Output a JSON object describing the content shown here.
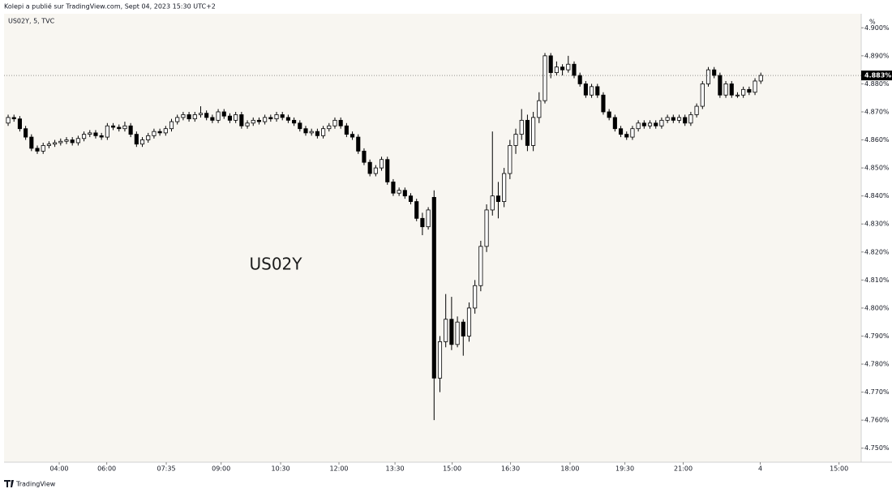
{
  "header": {
    "publisher": "Kolepi a publié sur TradingView.com, Sept 04, 2023 15:30 UTC+2",
    "footer": "TradingView"
  },
  "chart_data": {
    "type": "candlestick",
    "symbol": "US02Y, 5, TVC",
    "watermark": "US02Y",
    "unit": "%",
    "up_color": "#ffffff",
    "down_color": "#000000",
    "border_color": "#000000",
    "grid": false,
    "ylim": [
      4.745,
      4.905
    ],
    "yticks": [
      {
        "value": 4.75,
        "label": "4.750%"
      },
      {
        "value": 4.76,
        "label": "4.760%"
      },
      {
        "value": 4.77,
        "label": "4.770%"
      },
      {
        "value": 4.78,
        "label": "4.780%"
      },
      {
        "value": 4.79,
        "label": "4.790%"
      },
      {
        "value": 4.8,
        "label": "4.800%"
      },
      {
        "value": 4.81,
        "label": "4.810%"
      },
      {
        "value": 4.82,
        "label": "4.820%"
      },
      {
        "value": 4.83,
        "label": "4.830%"
      },
      {
        "value": 4.84,
        "label": "4.840%"
      },
      {
        "value": 4.85,
        "label": "4.850%"
      },
      {
        "value": 4.86,
        "label": "4.860%"
      },
      {
        "value": 4.87,
        "label": "4.870%"
      },
      {
        "value": 4.88,
        "label": "4.880%"
      },
      {
        "value": 4.89,
        "label": "4.890%"
      },
      {
        "value": 4.9,
        "label": "4.900%"
      }
    ],
    "xlim": [
      -0.7,
      146.2
    ],
    "xticks": [
      {
        "value": 8.75,
        "label": "04:00"
      },
      {
        "value": 16.9,
        "label": "06:00"
      },
      {
        "value": 27.1,
        "label": "07:35"
      },
      {
        "value": 36.5,
        "label": "09:00"
      },
      {
        "value": 46.7,
        "label": "10:30"
      },
      {
        "value": 56.7,
        "label": "12:00"
      },
      {
        "value": 66.3,
        "label": "13:30"
      },
      {
        "value": 76.1,
        "label": "15:00"
      },
      {
        "value": 86.1,
        "label": "16:30"
      },
      {
        "value": 96.3,
        "label": "18:00"
      },
      {
        "value": 105.7,
        "label": "19:30"
      },
      {
        "value": 115.7,
        "label": "21:00"
      },
      {
        "value": 128.9,
        "label": "4"
      },
      {
        "value": 142.4,
        "label": "15:00"
      }
    ],
    "last_price": {
      "value": 4.883,
      "label": "4.883%"
    },
    "ohlc": [
      [
        4.866,
        4.869,
        4.865,
        4.868
      ],
      [
        4.868,
        4.869,
        4.8665,
        4.8675
      ],
      [
        4.8675,
        4.8685,
        4.863,
        4.864
      ],
      [
        4.864,
        4.865,
        4.86,
        4.861
      ],
      [
        4.861,
        4.862,
        4.856,
        4.857
      ],
      [
        4.857,
        4.858,
        4.855,
        4.856
      ],
      [
        4.856,
        4.859,
        4.855,
        4.858
      ],
      [
        4.858,
        4.8595,
        4.857,
        4.8585
      ],
      [
        4.8585,
        4.86,
        4.8575,
        4.859
      ],
      [
        4.859,
        4.8605,
        4.858,
        4.8595
      ],
      [
        4.8595,
        4.861,
        4.8585,
        4.86
      ],
      [
        4.86,
        4.861,
        4.858,
        4.859
      ],
      [
        4.859,
        4.8615,
        4.858,
        4.8605
      ],
      [
        4.8605,
        4.863,
        4.8595,
        4.862
      ],
      [
        4.862,
        4.8635,
        4.861,
        4.8625
      ],
      [
        4.8625,
        4.8635,
        4.8605,
        4.8615
      ],
      [
        4.8615,
        4.8625,
        4.86,
        4.861
      ],
      [
        4.861,
        4.866,
        4.86,
        4.865
      ],
      [
        4.865,
        4.866,
        4.8635,
        4.8645
      ],
      [
        4.8645,
        4.8655,
        4.863,
        4.864
      ],
      [
        4.864,
        4.8665,
        4.863,
        4.865
      ],
      [
        4.865,
        4.866,
        4.861,
        4.862
      ],
      [
        4.862,
        4.863,
        4.8575,
        4.8585
      ],
      [
        4.8585,
        4.861,
        4.8575,
        4.86
      ],
      [
        4.86,
        4.8625,
        4.859,
        4.8615
      ],
      [
        4.8615,
        4.864,
        4.8605,
        4.863
      ],
      [
        4.863,
        4.864,
        4.8615,
        4.8625
      ],
      [
        4.8625,
        4.865,
        4.8615,
        4.864
      ],
      [
        4.864,
        4.8675,
        4.863,
        4.8665
      ],
      [
        4.8665,
        4.869,
        4.8655,
        4.868
      ],
      [
        4.868,
        4.87,
        4.867,
        4.869
      ],
      [
        4.869,
        4.87,
        4.8665,
        4.8675
      ],
      [
        4.8675,
        4.87,
        4.8665,
        4.869
      ],
      [
        4.869,
        4.872,
        4.868,
        4.8695
      ],
      [
        4.8695,
        4.8705,
        4.867,
        4.868
      ],
      [
        4.868,
        4.869,
        4.866,
        4.867
      ],
      [
        4.867,
        4.871,
        4.866,
        4.87
      ],
      [
        4.87,
        4.871,
        4.8675,
        4.8685
      ],
      [
        4.8685,
        4.8695,
        4.866,
        4.867
      ],
      [
        4.867,
        4.87,
        4.866,
        4.869
      ],
      [
        4.869,
        4.87,
        4.864,
        4.865
      ],
      [
        4.865,
        4.867,
        4.864,
        4.866
      ],
      [
        4.866,
        4.868,
        4.865,
        4.867
      ],
      [
        4.867,
        4.868,
        4.8655,
        4.8665
      ],
      [
        4.8665,
        4.869,
        4.8655,
        4.868
      ],
      [
        4.868,
        4.869,
        4.8665,
        4.8675
      ],
      [
        4.8675,
        4.87,
        4.8665,
        4.869
      ],
      [
        4.869,
        4.87,
        4.867,
        4.868
      ],
      [
        4.868,
        4.869,
        4.866,
        4.867
      ],
      [
        4.867,
        4.868,
        4.865,
        4.866
      ],
      [
        4.866,
        4.867,
        4.863,
        4.864
      ],
      [
        4.864,
        4.865,
        4.8615,
        4.8625
      ],
      [
        4.8625,
        4.864,
        4.8615,
        4.863
      ],
      [
        4.863,
        4.864,
        4.8605,
        4.8615
      ],
      [
        4.8615,
        4.865,
        4.8605,
        4.864
      ],
      [
        4.864,
        4.866,
        4.863,
        4.865
      ],
      [
        4.865,
        4.868,
        4.864,
        4.867
      ],
      [
        4.867,
        4.868,
        4.864,
        4.865
      ],
      [
        4.865,
        4.866,
        4.861,
        4.862
      ],
      [
        4.862,
        4.863,
        4.86,
        4.861
      ],
      [
        4.861,
        4.862,
        4.855,
        4.856
      ],
      [
        4.856,
        4.857,
        4.851,
        4.852
      ],
      [
        4.852,
        4.853,
        4.847,
        4.848
      ],
      [
        4.848,
        4.851,
        4.847,
        4.85
      ],
      [
        4.85,
        4.854,
        4.849,
        4.853
      ],
      [
        4.853,
        4.854,
        4.844,
        4.845
      ],
      [
        4.845,
        4.846,
        4.84,
        4.841
      ],
      [
        4.841,
        4.843,
        4.84,
        4.842
      ],
      [
        4.842,
        4.843,
        4.839,
        4.84
      ],
      [
        4.84,
        4.841,
        4.837,
        4.838
      ],
      [
        4.838,
        4.839,
        4.831,
        4.832
      ],
      [
        4.832,
        4.834,
        4.826,
        4.829
      ],
      [
        4.829,
        4.836,
        4.828,
        4.835
      ],
      [
        4.8395,
        4.842,
        4.76,
        4.775
      ],
      [
        4.775,
        4.79,
        4.77,
        4.788
      ],
      [
        4.788,
        4.805,
        4.786,
        4.796
      ],
      [
        4.796,
        4.804,
        4.785,
        4.787
      ],
      [
        4.787,
        4.797,
        4.786,
        4.795
      ],
      [
        4.795,
        4.796,
        4.783,
        4.79
      ],
      [
        4.79,
        4.802,
        4.788,
        4.8
      ],
      [
        4.8,
        4.81,
        4.798,
        4.808
      ],
      [
        4.808,
        4.824,
        4.806,
        4.822
      ],
      [
        4.822,
        4.837,
        4.82,
        4.835
      ],
      [
        4.835,
        4.863,
        4.833,
        4.84
      ],
      [
        4.84,
        4.845,
        4.832,
        4.838
      ],
      [
        4.838,
        4.85,
        4.836,
        4.848
      ],
      [
        4.848,
        4.86,
        4.846,
        4.858
      ],
      [
        4.858,
        4.864,
        4.855,
        4.862
      ],
      [
        4.862,
        4.871,
        4.86,
        4.867
      ],
      [
        4.867,
        4.869,
        4.856,
        4.858
      ],
      [
        4.858,
        4.87,
        4.856,
        4.868
      ],
      [
        4.868,
        4.877,
        4.866,
        4.874
      ],
      [
        4.874,
        4.891,
        4.873,
        4.89
      ],
      [
        4.89,
        4.891,
        4.882,
        4.884
      ],
      [
        4.884,
        4.888,
        4.883,
        4.886
      ],
      [
        4.886,
        4.887,
        4.883,
        4.885
      ],
      [
        4.885,
        4.89,
        4.884,
        4.887
      ],
      [
        4.887,
        4.888,
        4.882,
        4.883
      ],
      [
        4.883,
        4.884,
        4.879,
        4.88
      ],
      [
        4.88,
        4.881,
        4.875,
        4.876
      ],
      [
        4.876,
        4.88,
        4.875,
        4.879
      ],
      [
        4.879,
        4.88,
        4.875,
        4.876
      ],
      [
        4.876,
        4.877,
        4.869,
        4.87
      ],
      [
        4.87,
        4.871,
        4.867,
        4.868
      ],
      [
        4.868,
        4.869,
        4.863,
        4.864
      ],
      [
        4.864,
        4.865,
        4.861,
        4.862
      ],
      [
        4.862,
        4.863,
        4.86,
        4.861
      ],
      [
        4.861,
        4.865,
        4.86,
        4.864
      ],
      [
        4.864,
        4.867,
        4.863,
        4.866
      ],
      [
        4.866,
        4.867,
        4.864,
        4.865
      ],
      [
        4.865,
        4.867,
        4.864,
        4.866
      ],
      [
        4.866,
        4.867,
        4.864,
        4.865
      ],
      [
        4.865,
        4.868,
        4.864,
        4.867
      ],
      [
        4.867,
        4.869,
        4.866,
        4.868
      ],
      [
        4.868,
        4.869,
        4.866,
        4.867
      ],
      [
        4.867,
        4.869,
        4.866,
        4.868
      ],
      [
        4.868,
        4.869,
        4.865,
        4.866
      ],
      [
        4.866,
        4.87,
        4.865,
        4.869
      ],
      [
        4.869,
        4.873,
        4.868,
        4.872
      ],
      [
        4.872,
        4.881,
        4.871,
        4.88
      ],
      [
        4.88,
        4.886,
        4.879,
        4.885
      ],
      [
        4.885,
        4.886,
        4.882,
        4.883
      ],
      [
        4.883,
        4.884,
        4.875,
        4.876
      ],
      [
        4.876,
        4.881,
        4.875,
        4.88
      ],
      [
        4.88,
        4.881,
        4.875,
        4.876
      ],
      [
        4.876,
        4.877,
        4.875,
        4.876
      ],
      [
        4.876,
        4.879,
        4.875,
        4.878
      ],
      [
        4.878,
        4.879,
        4.876,
        4.877
      ],
      [
        4.877,
        4.882,
        4.876,
        4.881
      ],
      [
        4.881,
        4.884,
        4.88,
        4.883
      ]
    ]
  }
}
